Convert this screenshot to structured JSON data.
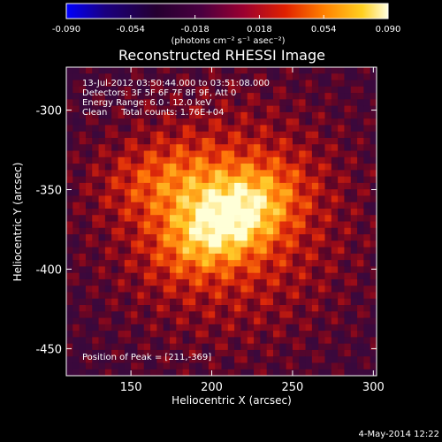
{
  "colorbar": {
    "ticks": [
      "-0.090",
      "-0.054",
      "-0.018",
      "0.018",
      "0.054",
      "0.090"
    ],
    "units": "(photons cm⁻² s⁻¹ asec⁻²)"
  },
  "chart_data": {
    "type": "heatmap",
    "title": "Reconstructed RHESSI Image",
    "xlabel": "Heliocentric X (arcsec)",
    "ylabel": "Heliocentric Y (arcsec)",
    "xlim": [
      110,
      302
    ],
    "ylim": [
      -467,
      -273
    ],
    "zlim": [
      -0.09,
      0.09
    ],
    "x_ticks": [
      "150",
      "200",
      "250",
      "300"
    ],
    "y_ticks": [
      "-300",
      "-350",
      "-400",
      "-450"
    ],
    "peak": [
      211,
      -369
    ],
    "annotations": [
      "13-Jul-2012 03:50:44.000 to 03:51:08.000",
      "Detectors: 3F 5F 6F 7F 8F 9F, Att 0",
      "Energy Range: 6.0 - 12.0 keV",
      "Clean     Total counts: 1.76E+04"
    ],
    "peak_label": "Position of Peak = [211,-369]"
  },
  "footer": {
    "date": "4-May-2014 12:22"
  }
}
